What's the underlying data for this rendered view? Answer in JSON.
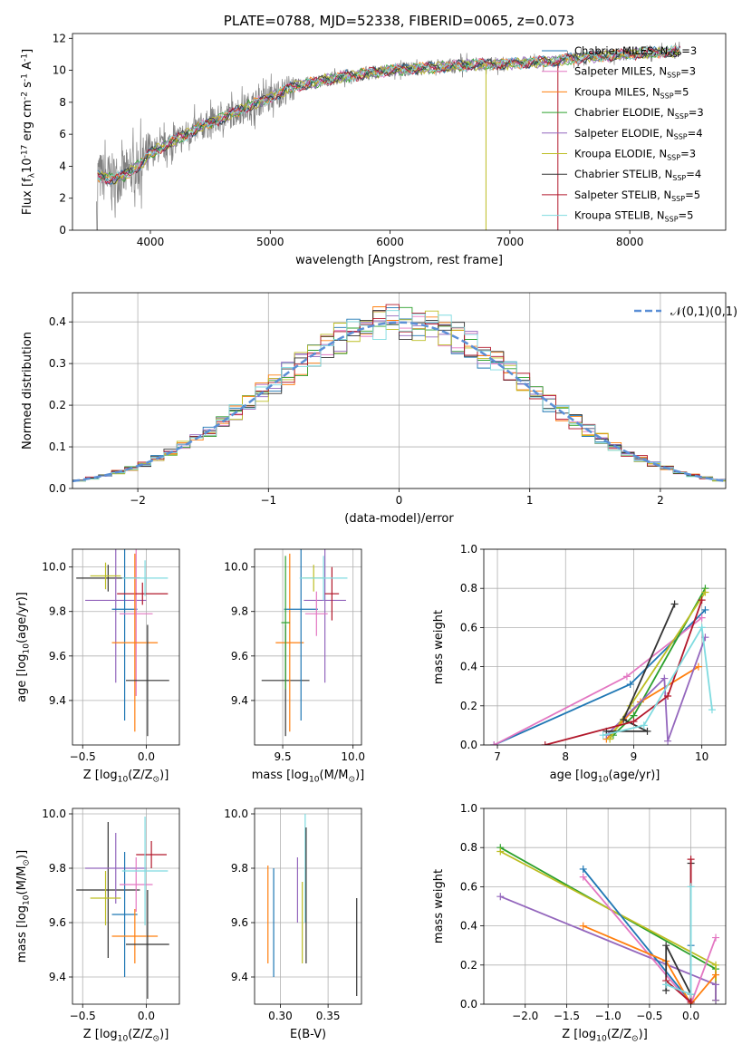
{
  "chart_data": [
    {
      "id": "spectrum",
      "type": "line",
      "title": "PLATE=0788, MJD=52338, FIBERID=0065, z=0.073",
      "xlabel": "wavelength [Angstrom, rest frame]",
      "ylabel": "Flux [f$_\\lambda$10$^{-17}$ erg cm$^{-2}$ s$^{-1}$ A$^{-1}$]",
      "xlim": [
        3350,
        8800
      ],
      "ylim": [
        0,
        12.3
      ],
      "xticks": [
        4000,
        5000,
        6000,
        7000,
        8000
      ],
      "yticks": [
        0,
        2,
        4,
        6,
        8,
        10,
        12
      ],
      "legend_position": "right",
      "legend": [
        {
          "label": "Chabrier MILES, N$_{SSP}$=3",
          "color": "#1f77b4"
        },
        {
          "label": "Salpeter MILES, N$_{SSP}$=3",
          "color": "#e377c2"
        },
        {
          "label": "Kroupa MILES, N$_{SSP}$=5",
          "color": "#ff7f0e"
        },
        {
          "label": "Chabrier ELODIE, N$_{SSP}$=3",
          "color": "#2ca02c"
        },
        {
          "label": "Salpeter ELODIE, N$_{SSP}$=4",
          "color": "#9467bd"
        },
        {
          "label": "Kroupa ELODIE, N$_{SSP}$=3",
          "color": "#bcbd22"
        },
        {
          "label": "Chabrier STELIB, N$_{SSP}$=4",
          "color": "#333333"
        },
        {
          "label": "Salpeter STELIB, N$_{SSP}$=5",
          "color": "#b2182b"
        },
        {
          "label": "Kroupa STELIB, N$_{SSP}$=5",
          "color": "#7fdbe0"
        }
      ],
      "data_envelope": {
        "x": [
          3550,
          3700,
          3800,
          3900,
          4000,
          4200,
          4400,
          4600,
          4800,
          5000,
          5200,
          5400,
          5600,
          5800,
          6000,
          6200,
          6400,
          6600,
          6800,
          7000,
          7200,
          7400,
          7600,
          7800,
          8000,
          8200,
          8400
        ],
        "y": [
          3.4,
          3.2,
          3.5,
          4.0,
          4.8,
          5.6,
          6.4,
          7.0,
          7.7,
          8.3,
          9.0,
          9.3,
          9.6,
          9.8,
          10.0,
          10.1,
          10.2,
          10.3,
          10.4,
          10.4,
          10.5,
          10.6,
          10.8,
          10.9,
          11.0,
          11.1,
          11.2
        ]
      }
    },
    {
      "id": "residuals",
      "type": "histogram",
      "xlabel": "(data-model)/error",
      "ylabel": "Normed distribution",
      "xlim": [
        -2.5,
        2.5
      ],
      "ylim": [
        0,
        0.47
      ],
      "xticks": [
        -2,
        -1,
        0,
        1,
        2
      ],
      "yticks": [
        0.0,
        0.1,
        0.2,
        0.3,
        0.4
      ],
      "legend_label": "$\\mathcal{N}(0,1)$",
      "legend_position": "top-right",
      "reference_curve": "normal(0,1)",
      "bin_width": 0.1
    },
    {
      "id": "age_vs_Z",
      "type": "scatter",
      "xlabel": "Z [log$_{10}$(Z/Z$_\\odot$)]",
      "ylabel": "age  [log$_{10}$(age/yr)]",
      "xlim": [
        -0.58,
        0.26
      ],
      "ylim": [
        9.2,
        10.08
      ],
      "xticks": [
        -0.5,
        0.0
      ],
      "yticks": [
        9.4,
        9.6,
        9.8,
        10.0
      ],
      "points": [
        {
          "color": "#333333",
          "x": -0.3,
          "xerr": 0.25,
          "y": 9.95,
          "yerr": 0.06
        },
        {
          "color": "#9467bd",
          "x": -0.24,
          "xerr": 0.24,
          "y": 9.85,
          "yerr": 0.37
        },
        {
          "color": "#bcbd22",
          "x": -0.32,
          "xerr": 0.12,
          "y": 9.96,
          "yerr": 0.06
        },
        {
          "color": "#1f77b4",
          "x": -0.17,
          "xerr": 0.1,
          "y": 9.81,
          "yerr": 0.5
        },
        {
          "color": "#e377c2",
          "x": -0.08,
          "xerr": 0.13,
          "y": 9.79,
          "yerr": 0.37
        },
        {
          "color": "#b2182b",
          "x": -0.03,
          "xerr": 0.2,
          "y": 9.88,
          "yerr": 0.05
        },
        {
          "color": "#ff7f0e",
          "x": -0.09,
          "xerr": 0.18,
          "y": 9.66,
          "yerr": 0.4
        },
        {
          "color": "#7fdbe0",
          "x": -0.01,
          "xerr": 0.18,
          "y": 9.95,
          "yerr": 0.08
        },
        {
          "color": "#333333",
          "x": 0.01,
          "xerr": 0.17,
          "y": 9.49,
          "yerr": 0.25
        }
      ]
    },
    {
      "id": "age_vs_mass",
      "type": "scatter",
      "xlabel": "mass [log$_{10}$(M/M$_\\odot$)]",
      "xlim": [
        9.3,
        10.06
      ],
      "ylim": [
        9.2,
        10.08
      ],
      "xticks": [
        9.5,
        10.0
      ],
      "yticks": [
        9.4,
        9.6,
        9.8,
        10.0
      ],
      "points": [
        {
          "color": "#333333",
          "x": 9.52,
          "xerr": 0.17,
          "y": 9.49,
          "yerr": 0.25
        },
        {
          "color": "#ff7f0e",
          "x": 9.55,
          "xerr": 0.1,
          "y": 9.66,
          "yerr": 0.4
        },
        {
          "color": "#1f77b4",
          "x": 9.63,
          "xerr": 0.12,
          "y": 9.81,
          "yerr": 0.5
        },
        {
          "color": "#9467bd",
          "x": 9.8,
          "xerr": 0.15,
          "y": 9.85,
          "yerr": 0.37
        },
        {
          "color": "#b2182b",
          "x": 9.85,
          "xerr": 0.05,
          "y": 9.88,
          "yerr": 0.12
        },
        {
          "color": "#bcbd22",
          "x": 9.72,
          "xerr": 0.08,
          "y": 9.95,
          "yerr": 0.06
        },
        {
          "color": "#7fdbe0",
          "x": 9.79,
          "xerr": 0.17,
          "y": 9.95,
          "yerr": 0.1
        },
        {
          "color": "#e377c2",
          "x": 9.74,
          "xerr": 0.08,
          "y": 9.79,
          "yerr": 0.1
        },
        {
          "color": "#2ca02c",
          "x": 9.52,
          "xerr": 0.03,
          "y": 9.75,
          "yerr": 0.3
        }
      ]
    },
    {
      "id": "massweight_vs_age",
      "type": "line",
      "xlabel": "age  [log$_{10}$(age/yr)]",
      "ylabel": "mass weight",
      "xlim": [
        6.8,
        10.35
      ],
      "ylim": [
        0,
        1.0
      ],
      "xticks": [
        7,
        8,
        9,
        10
      ],
      "yticks": [
        0.0,
        0.2,
        0.4,
        0.6,
        0.8,
        1.0
      ],
      "series": [
        {
          "color": "#1f77b4",
          "x": [
            6.95,
            8.95,
            10.05
          ],
          "y": [
            0.0,
            0.31,
            0.69
          ]
        },
        {
          "color": "#e377c2",
          "x": [
            6.95,
            8.9,
            10.0
          ],
          "y": [
            0.0,
            0.35,
            0.65
          ]
        },
        {
          "color": "#ff7f0e",
          "x": [
            8.6,
            9.1,
            9.95
          ],
          "y": [
            0.03,
            0.22,
            0.4
          ]
        },
        {
          "color": "#2ca02c",
          "x": [
            8.7,
            9.0,
            10.05
          ],
          "y": [
            0.05,
            0.15,
            0.8
          ]
        },
        {
          "color": "#9467bd",
          "x": [
            8.6,
            9.45,
            9.5,
            10.05
          ],
          "y": [
            0.05,
            0.34,
            0.02,
            0.55
          ]
        },
        {
          "color": "#bcbd22",
          "x": [
            8.65,
            8.95,
            10.05
          ],
          "y": [
            0.03,
            0.2,
            0.78
          ]
        },
        {
          "color": "#333333",
          "x": [
            8.6,
            9.2,
            8.85,
            9.6
          ],
          "y": [
            0.07,
            0.07,
            0.13,
            0.72
          ]
        },
        {
          "color": "#b2182b",
          "x": [
            7.7,
            9.0,
            9.5,
            10.0
          ],
          "y": [
            0.0,
            0.12,
            0.25,
            0.74
          ]
        },
        {
          "color": "#7fdbe0",
          "x": [
            8.55,
            9.15,
            10.0,
            10.15
          ],
          "y": [
            0.05,
            0.1,
            0.6,
            0.18
          ]
        }
      ]
    },
    {
      "id": "mass_vs_Z",
      "type": "scatter",
      "xlabel": "Z [log$_{10}$(Z/Z$_\\odot$)]",
      "ylabel": "mass [log$_{10}$(M/M$_\\odot$)]",
      "xlim": [
        -0.58,
        0.26
      ],
      "ylim": [
        9.3,
        10.02
      ],
      "xticks": [
        -0.5,
        0.0
      ],
      "yticks": [
        9.4,
        9.6,
        9.8,
        10.0
      ],
      "points": [
        {
          "color": "#333333",
          "x": -0.3,
          "xerr": 0.25,
          "y": 9.72,
          "yerr": 0.25
        },
        {
          "color": "#9467bd",
          "x": -0.24,
          "xerr": 0.24,
          "y": 9.8,
          "yerr": 0.13
        },
        {
          "color": "#bcbd22",
          "x": -0.32,
          "xerr": 0.12,
          "y": 9.69,
          "yerr": 0.1
        },
        {
          "color": "#1f77b4",
          "x": -0.17,
          "xerr": 0.1,
          "y": 9.63,
          "yerr": 0.23
        },
        {
          "color": "#e377c2",
          "x": -0.08,
          "xerr": 0.13,
          "y": 9.74,
          "yerr": 0.1
        },
        {
          "color": "#b2182b",
          "x": 0.04,
          "xerr": 0.12,
          "y": 9.85,
          "yerr": 0.05
        },
        {
          "color": "#ff7f0e",
          "x": -0.09,
          "xerr": 0.18,
          "y": 9.55,
          "yerr": 0.1
        },
        {
          "color": "#7fdbe0",
          "x": -0.01,
          "xerr": 0.18,
          "y": 9.79,
          "yerr": 0.2
        },
        {
          "color": "#333333",
          "x": 0.01,
          "xerr": 0.17,
          "y": 9.52,
          "yerr": 0.2
        }
      ]
    },
    {
      "id": "mass_vs_ebv",
      "type": "scatter",
      "xlabel": "E(B-V)",
      "xlim": [
        0.273,
        0.385
      ],
      "ylim": [
        9.3,
        10.02
      ],
      "xticks": [
        0.3,
        0.35
      ],
      "yticks": [
        9.4,
        9.6,
        9.8,
        10.0
      ],
      "points": [
        {
          "color": "#ff7f0e",
          "x": 0.287,
          "xerr": 0.0,
          "y": 9.63,
          "yerr": 0.18
        },
        {
          "color": "#1f77b4",
          "x": 0.293,
          "xerr": 0.0,
          "y": 9.6,
          "yerr": 0.2
        },
        {
          "color": "#9467bd",
          "x": 0.318,
          "xerr": 0.0,
          "y": 9.72,
          "yerr": 0.12
        },
        {
          "color": "#bcbd22",
          "x": 0.323,
          "xerr": 0.0,
          "y": 9.6,
          "yerr": 0.15
        },
        {
          "color": "#7fdbe0",
          "x": 0.326,
          "xerr": 0.0,
          "y": 9.8,
          "yerr": 0.2
        },
        {
          "color": "#333333",
          "x": 0.327,
          "xerr": 0.0,
          "y": 9.7,
          "yerr": 0.25
        },
        {
          "color": "#333333",
          "x": 0.38,
          "xerr": 0.0,
          "y": 9.51,
          "yerr": 0.18
        }
      ]
    },
    {
      "id": "massweight_vs_Z",
      "type": "line",
      "xlabel": "Z [log$_{10}$(Z/Z$_\\odot$)]",
      "ylabel": "mass weight",
      "xlim": [
        -2.5,
        0.42
      ],
      "ylim": [
        0,
        1.0
      ],
      "xticks": [
        -2.0,
        -1.5,
        -1.0,
        -0.5,
        0.0
      ],
      "yticks": [
        0.0,
        0.2,
        0.4,
        0.6,
        0.8,
        1.0
      ],
      "series": [
        {
          "color": "#2ca02c",
          "x": [
            -2.3,
            0.3,
            0.3
          ],
          "y": [
            0.8,
            0.18,
            0.02
          ]
        },
        {
          "color": "#bcbd22",
          "x": [
            -2.3,
            0.3,
            0.3
          ],
          "y": [
            0.78,
            0.2,
            0.02
          ]
        },
        {
          "color": "#9467bd",
          "x": [
            -2.3,
            0.3,
            0.3
          ],
          "y": [
            0.55,
            0.1,
            0.02
          ]
        },
        {
          "color": "#1f77b4",
          "x": [
            -1.3,
            0.0,
            0.0
          ],
          "y": [
            0.69,
            0.01,
            0.3
          ]
        },
        {
          "color": "#e377c2",
          "x": [
            -1.3,
            0.0,
            0.3
          ],
          "y": [
            0.65,
            0.0,
            0.34
          ]
        },
        {
          "color": "#ff7f0e",
          "x": [
            -1.3,
            -0.3,
            0.0,
            0.3
          ],
          "y": [
            0.4,
            0.22,
            0.0,
            0.15
          ]
        },
        {
          "color": "#333333",
          "x": [
            -0.3,
            -0.3,
            0.0,
            0.0
          ],
          "y": [
            0.07,
            0.3,
            0.05,
            0.72
          ]
        },
        {
          "color": "#b2182b",
          "x": [
            -0.3,
            0.0,
            0.0
          ],
          "y": [
            0.12,
            0.01,
            0.74
          ]
        },
        {
          "color": "#7fdbe0",
          "x": [
            -0.3,
            0.0,
            0.0
          ],
          "y": [
            0.1,
            0.05,
            0.6
          ]
        }
      ]
    }
  ]
}
